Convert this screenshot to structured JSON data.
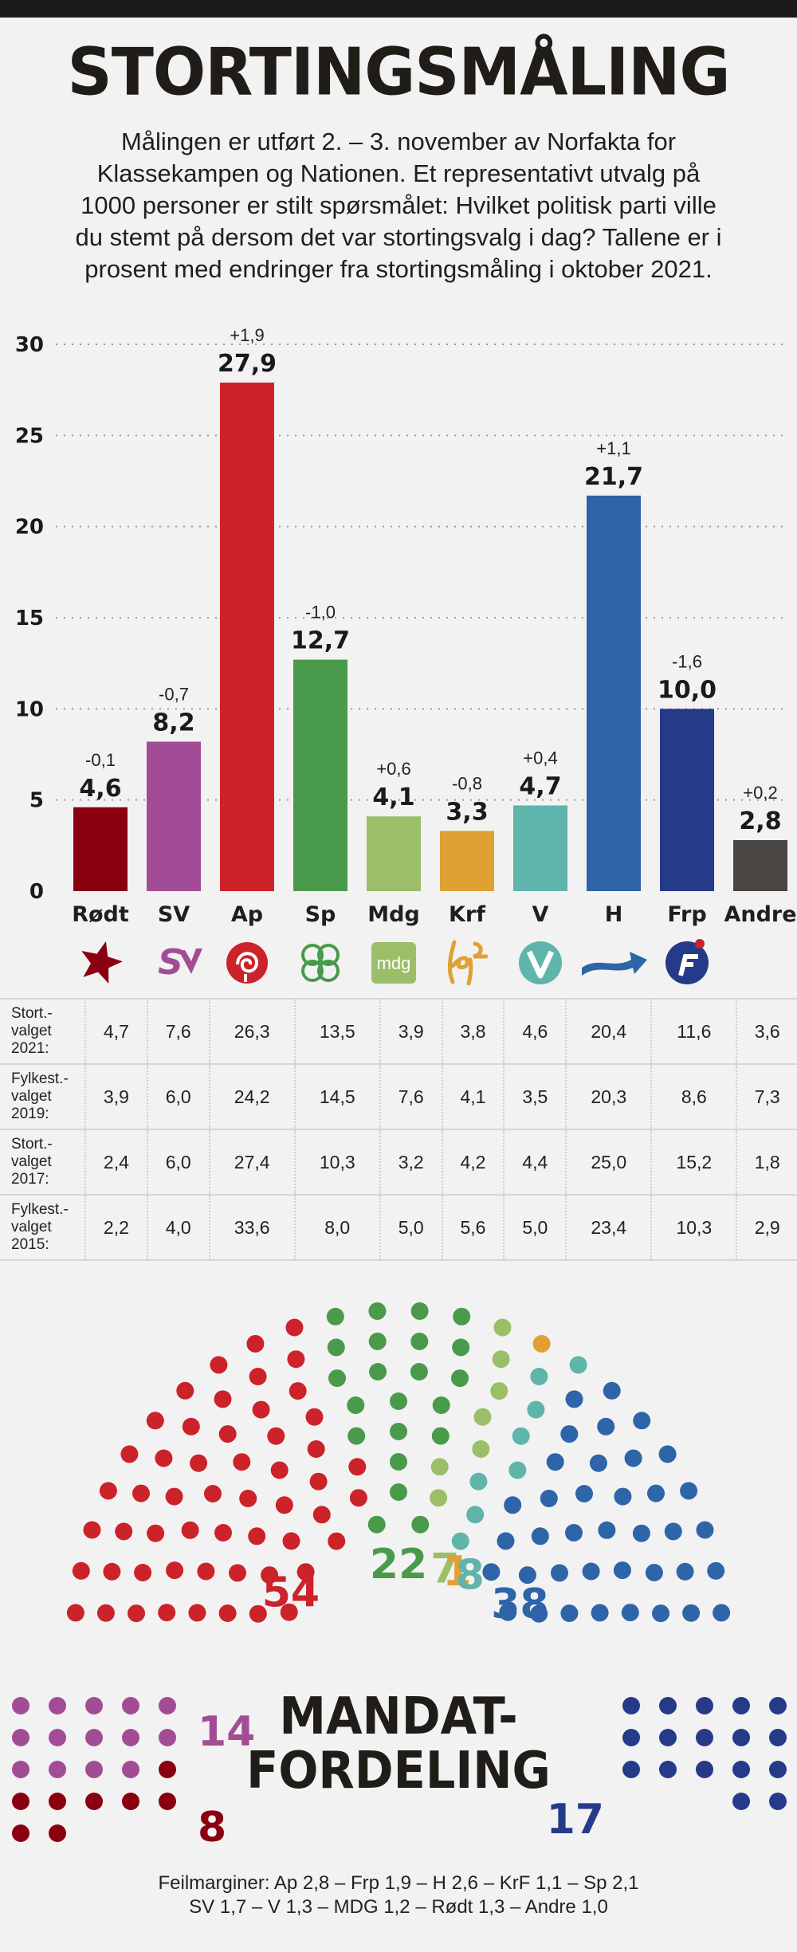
{
  "title": "STORTINGSMÅLING",
  "intro": "Målingen er utført 2. – 3. november av Norfakta for Klassekampen og Nationen. Et representativt utvalg på 1000 personer er stilt spørsmålet: Hvilket politisk parti ville du stemt på dersom det var stortingsvalg i dag? Tallene er i prosent med endringer fra stortingsmåling i oktober 2021.",
  "chart_data": {
    "type": "bar",
    "title": "STORTINGSMÅLING",
    "xlabel": "",
    "ylabel": "",
    "ylim": [
      0,
      30
    ],
    "yticks": [
      0,
      5,
      10,
      15,
      20,
      25,
      30
    ],
    "categories": [
      "Rødt",
      "SV",
      "Ap",
      "Sp",
      "Mdg",
      "Krf",
      "V",
      "H",
      "Frp",
      "Andre"
    ],
    "values": [
      4.6,
      8.2,
      27.9,
      12.7,
      4.1,
      3.3,
      4.7,
      21.7,
      10.0,
      2.8
    ],
    "value_labels": [
      "4,6",
      "8,2",
      "27,9",
      "12,7",
      "4,1",
      "3,3",
      "4,7",
      "21,7",
      "10,0",
      "2,8"
    ],
    "changes": [
      "-0,1",
      "-0,7",
      "+1,9",
      "-1,0",
      "+0,6",
      "-0,8",
      "+0,4",
      "+1,1",
      "-1,6",
      "+0,2"
    ],
    "colors": [
      "#8a0010",
      "#a24c96",
      "#cc2229",
      "#4a9a4c",
      "#9bbf68",
      "#e0a032",
      "#5fb4ac",
      "#2e64a8",
      "#263a8a",
      "#4a4644"
    ],
    "grid": true
  },
  "party_icons": [
    "roedt-star-icon",
    "sv-logo-icon",
    "ap-rose-icon",
    "sp-clover-icon",
    "mdg-logo-icon",
    "krf-logo-icon",
    "v-logo-icon",
    "h-arrow-icon",
    "frp-logo-icon",
    ""
  ],
  "mdg_icon_text": "mdg",
  "history": [
    {
      "label_lines": [
        "Stort.-",
        "valget",
        "2021:"
      ],
      "values": [
        "4,7",
        "7,6",
        "26,3",
        "13,5",
        "3,9",
        "3,8",
        "4,6",
        "20,4",
        "11,6",
        "3,6"
      ]
    },
    {
      "label_lines": [
        "Fylkest.-",
        "valget",
        "2019:"
      ],
      "values": [
        "3,9",
        "6,0",
        "24,2",
        "14,5",
        "7,6",
        "4,1",
        "3,5",
        "20,3",
        "8,6",
        "7,3"
      ]
    },
    {
      "label_lines": [
        "Stort.-",
        "valget",
        "2017:"
      ],
      "values": [
        "2,4",
        "6,0",
        "27,4",
        "10,3",
        "3,2",
        "4,2",
        "4,4",
        "25,0",
        "15,2",
        "1,8"
      ]
    },
    {
      "label_lines": [
        "Fylkest.-",
        "valget",
        "2015:"
      ],
      "values": [
        "2,2",
        "4,0",
        "33,6",
        "8,0",
        "5,0",
        "5,6",
        "5,0",
        "23,4",
        "10,3",
        "2,9"
      ]
    }
  ],
  "seats": {
    "title_line1": "MANDAT-",
    "title_line2": "FORDELING",
    "parliament": [
      {
        "party": "Ap",
        "seats": 54,
        "label": "54",
        "color": "#cc2229"
      },
      {
        "party": "Sp",
        "seats": 22,
        "label": "22",
        "color": "#4a9a4c"
      },
      {
        "party": "Mdg",
        "seats": 7,
        "label": "7",
        "color": "#9bbf68"
      },
      {
        "party": "Krf",
        "seats": 1,
        "label": "1",
        "color": "#e0a032"
      },
      {
        "party": "V",
        "seats": 8,
        "label": "8",
        "color": "#5fb4ac"
      },
      {
        "party": "H",
        "seats": 38,
        "label": "38",
        "color": "#2e64a8"
      }
    ],
    "left_block": [
      {
        "party": "SV",
        "seats": 14,
        "label": "14",
        "color": "#a24c96"
      },
      {
        "party": "Rødt",
        "seats": 8,
        "label": "8",
        "color": "#8a0010"
      }
    ],
    "right_block": [
      {
        "party": "Frp",
        "seats": 17,
        "label": "17",
        "color": "#263a8a"
      }
    ]
  },
  "errors": {
    "line1": "Feilmarginer: Ap  2,8 – Frp 1,9 – H 2,6 – KrF 1,1 – Sp 2,1",
    "line2": "SV 1,7 – V 1,3 – MDG 1,2 – Rødt 1,3 – Andre 1,0"
  }
}
